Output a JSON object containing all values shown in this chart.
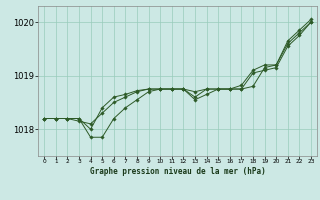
{
  "title": "Graphe pression niveau de la mer (hPa)",
  "bg_color": "#cce8e4",
  "grid_color": "#99ccbb",
  "line_color": "#2d5a27",
  "marker_color": "#2d5a27",
  "xlim": [
    -0.5,
    23.5
  ],
  "ylim": [
    1017.5,
    1020.3
  ],
  "yticks": [
    1018,
    1019,
    1020
  ],
  "xticks": [
    0,
    1,
    2,
    3,
    4,
    5,
    6,
    7,
    8,
    9,
    10,
    11,
    12,
    13,
    14,
    15,
    16,
    17,
    18,
    19,
    20,
    21,
    22,
    23
  ],
  "series": [
    [
      1018.2,
      1018.2,
      1018.2,
      1018.2,
      1017.85,
      1017.85,
      1018.2,
      1018.4,
      1018.55,
      1018.7,
      1018.75,
      1018.75,
      1018.75,
      1018.6,
      1018.75,
      1018.75,
      1018.75,
      1018.75,
      1018.8,
      1019.15,
      1019.2,
      1019.65,
      1019.85,
      1020.05
    ],
    [
      1018.2,
      1018.2,
      1018.2,
      1018.15,
      1018.1,
      1018.3,
      1018.5,
      1018.6,
      1018.7,
      1018.75,
      1018.75,
      1018.75,
      1018.75,
      1018.55,
      1018.65,
      1018.75,
      1018.75,
      1018.75,
      1019.05,
      1019.1,
      1019.15,
      1019.55,
      1019.75,
      1020.0
    ],
    [
      1018.2,
      1018.2,
      1018.2,
      1018.2,
      1018.0,
      1018.4,
      1018.6,
      1018.65,
      1018.72,
      1018.75,
      1018.75,
      1018.75,
      1018.75,
      1018.7,
      1018.75,
      1018.75,
      1018.75,
      1018.82,
      1019.1,
      1019.2,
      1019.2,
      1019.6,
      1019.8,
      1020.0
    ]
  ]
}
